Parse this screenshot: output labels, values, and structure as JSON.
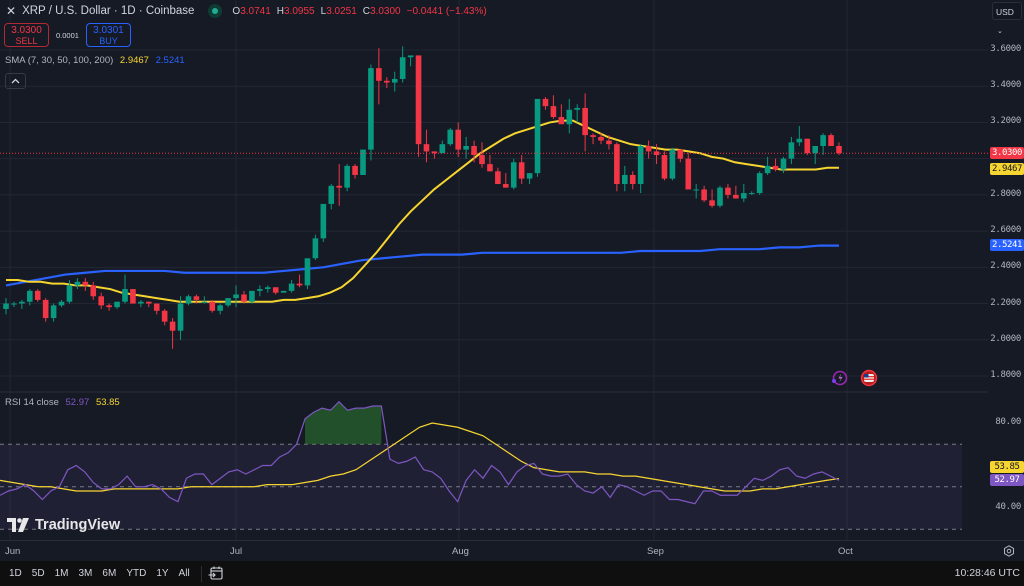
{
  "header": {
    "close_icon": "✕",
    "title": "XRP / U.S. Dollar · 1D · Coinbase",
    "ohlc": [
      {
        "label": "O",
        "value": "3.0741"
      },
      {
        "label": "H",
        "value": "3.0955"
      },
      {
        "label": "L",
        "value": "3.0251"
      },
      {
        "label": "C",
        "value": "3.0300"
      },
      {
        "label": "",
        "value": "−0.0441 (−1.43%)"
      }
    ]
  },
  "trade": {
    "sell_price": "3.0300",
    "sell_label": "SELL",
    "spread": "0.0001",
    "buy_price": "3.0301",
    "buy_label": "BUY"
  },
  "sma_legend": {
    "label": "SMA (7, 30, 50, 100, 200)",
    "value_yellow": "2.9467",
    "value_blue": "2.5241"
  },
  "collapse_icon": "^",
  "rsi_legend": {
    "label": "RSI 14 close",
    "value_rsi": "52.97",
    "value_ma": "53.85"
  },
  "currency": {
    "label": "USD",
    "chevron": "⌄"
  },
  "price_axis": {
    "ticks": [
      "3.6000",
      "3.4000",
      "3.2000",
      "2.8000",
      "2.6000",
      "2.4000",
      "2.2000",
      "2.0000",
      "1.8000"
    ],
    "tags": [
      {
        "value": "3.0300",
        "bg": "#f23645",
        "fg": "#ffffff"
      },
      {
        "value": "2.9467",
        "bg": "#f7d530",
        "fg": "#131722"
      },
      {
        "value": "2.5241",
        "bg": "#2962ff",
        "fg": "#ffffff"
      }
    ]
  },
  "rsi_axis": {
    "ticks": [
      "80.00",
      "40.00"
    ],
    "tags": [
      {
        "value": "53.85",
        "bg": "#f7d530",
        "fg": "#131722"
      },
      {
        "value": "52.97",
        "bg": "#7e57c2",
        "fg": "#ffffff"
      }
    ]
  },
  "time_axis": {
    "labels": [
      "Jun",
      "Jul",
      "Aug",
      "Sep",
      "Oct"
    ]
  },
  "bottom_bar": {
    "ranges": [
      "1D",
      "5D",
      "1M",
      "3M",
      "6M",
      "YTD",
      "1Y",
      "All"
    ],
    "clock": "10:28:46 UTC"
  },
  "logo": {
    "text": "TradingView"
  },
  "colors": {
    "up": "#089981",
    "down": "#f23645",
    "sma_fast": "#f7d530",
    "sma_slow": "#2962ff",
    "rsi": "#7e57c2",
    "rsi_ma": "#f7d530",
    "bg": "#161a25",
    "grid": "#232733"
  },
  "chart_data": [
    {
      "type": "candlestick",
      "title": "XRP / U.S. Dollar · 1D · Coinbase",
      "ylabel": "USD",
      "ylim": [
        1.75,
        3.7
      ],
      "x_ticks": [
        "Jun",
        "Jul",
        "Aug",
        "Sep",
        "Oct"
      ],
      "y_ticks": [
        1.8,
        2.0,
        2.2,
        2.4,
        2.6,
        2.8,
        3.2,
        3.4,
        3.6
      ],
      "last_price": 3.03,
      "candles": [
        [
          2.17,
          2.23,
          2.14,
          2.2
        ],
        [
          2.2,
          2.21,
          2.18,
          2.2
        ],
        [
          2.2,
          2.22,
          2.17,
          2.21
        ],
        [
          2.21,
          2.28,
          2.19,
          2.27
        ],
        [
          2.27,
          2.28,
          2.21,
          2.22
        ],
        [
          2.22,
          2.23,
          2.1,
          2.12
        ],
        [
          2.12,
          2.2,
          2.1,
          2.19
        ],
        [
          2.19,
          2.22,
          2.18,
          2.21
        ],
        [
          2.21,
          2.33,
          2.2,
          2.3
        ],
        [
          2.3,
          2.34,
          2.28,
          2.32
        ],
        [
          2.32,
          2.34,
          2.27,
          2.3
        ],
        [
          2.3,
          2.32,
          2.22,
          2.24
        ],
        [
          2.24,
          2.26,
          2.17,
          2.19
        ],
        [
          2.19,
          2.2,
          2.16,
          2.18
        ],
        [
          2.18,
          2.21,
          2.17,
          2.21
        ],
        [
          2.21,
          2.36,
          2.2,
          2.28
        ],
        [
          2.28,
          2.28,
          2.2,
          2.2
        ],
        [
          2.2,
          2.22,
          2.18,
          2.21
        ],
        [
          2.21,
          2.21,
          2.18,
          2.2
        ],
        [
          2.2,
          2.2,
          2.14,
          2.16
        ],
        [
          2.16,
          2.17,
          2.08,
          2.1
        ],
        [
          2.1,
          2.12,
          1.95,
          2.05
        ],
        [
          2.05,
          2.24,
          2.0,
          2.2
        ],
        [
          2.2,
          2.25,
          2.19,
          2.24
        ],
        [
          2.24,
          2.25,
          2.2,
          2.22
        ],
        [
          2.21,
          2.24,
          2.2,
          2.21
        ],
        [
          2.21,
          2.22,
          2.15,
          2.16
        ],
        [
          2.16,
          2.2,
          2.14,
          2.19
        ],
        [
          2.19,
          2.23,
          2.18,
          2.23
        ],
        [
          2.23,
          2.3,
          2.18,
          2.25
        ],
        [
          2.25,
          2.27,
          2.2,
          2.21
        ],
        [
          2.21,
          2.26,
          2.2,
          2.27
        ],
        [
          2.27,
          2.3,
          2.24,
          2.28
        ],
        [
          2.28,
          2.3,
          2.26,
          2.29
        ],
        [
          2.29,
          2.29,
          2.25,
          2.26
        ],
        [
          2.26,
          2.27,
          2.26,
          2.27
        ],
        [
          2.27,
          2.33,
          2.26,
          2.31
        ],
        [
          2.31,
          2.36,
          2.29,
          2.3
        ],
        [
          2.3,
          2.4,
          2.28,
          2.45
        ],
        [
          2.45,
          2.58,
          2.44,
          2.56
        ],
        [
          2.56,
          2.7,
          2.54,
          2.75
        ],
        [
          2.75,
          2.86,
          2.72,
          2.85
        ],
        [
          2.85,
          2.97,
          2.74,
          2.84
        ],
        [
          2.84,
          2.97,
          2.82,
          2.96
        ],
        [
          2.96,
          2.97,
          2.89,
          2.91
        ],
        [
          2.91,
          3.04,
          2.91,
          3.05
        ],
        [
          3.05,
          3.52,
          2.99,
          3.5
        ],
        [
          3.5,
          3.61,
          3.3,
          3.43
        ],
        [
          3.43,
          3.45,
          3.39,
          3.42
        ],
        [
          3.42,
          3.48,
          3.37,
          3.44
        ],
        [
          3.44,
          3.62,
          3.42,
          3.56
        ],
        [
          3.56,
          3.57,
          3.51,
          3.57
        ],
        [
          3.57,
          3.57,
          3.01,
          3.08
        ],
        [
          3.08,
          3.16,
          2.98,
          3.04
        ],
        [
          3.04,
          3.04,
          3.0,
          3.03
        ],
        [
          3.03,
          3.1,
          3.06,
          3.08
        ],
        [
          3.08,
          3.17,
          3.07,
          3.16
        ],
        [
          3.16,
          3.2,
          3.01,
          3.05
        ],
        [
          3.05,
          3.12,
          3.0,
          3.07
        ],
        [
          3.07,
          3.1,
          2.98,
          3.02
        ],
        [
          3.02,
          3.09,
          2.95,
          2.97
        ],
        [
          2.97,
          3.02,
          2.93,
          2.93
        ],
        [
          2.93,
          2.95,
          2.86,
          2.86
        ],
        [
          2.86,
          2.92,
          2.84,
          2.84
        ],
        [
          2.84,
          3.0,
          2.83,
          2.98
        ],
        [
          2.98,
          3.02,
          2.86,
          2.89
        ],
        [
          2.89,
          2.92,
          2.86,
          2.92
        ],
        [
          2.92,
          3.13,
          2.9,
          3.33
        ],
        [
          3.33,
          3.34,
          3.27,
          3.29
        ],
        [
          3.29,
          3.35,
          3.22,
          3.23
        ],
        [
          3.23,
          3.3,
          3.2,
          3.19
        ],
        [
          3.19,
          3.33,
          3.14,
          3.27
        ],
        [
          3.27,
          3.3,
          3.2,
          3.28
        ],
        [
          3.28,
          3.36,
          3.04,
          3.13
        ],
        [
          3.13,
          3.14,
          3.08,
          3.12
        ],
        [
          3.12,
          3.14,
          3.08,
          3.1
        ],
        [
          3.1,
          3.13,
          3.05,
          3.08
        ],
        [
          3.08,
          3.09,
          2.82,
          2.86
        ],
        [
          2.86,
          2.96,
          2.82,
          2.91
        ],
        [
          2.91,
          2.93,
          2.83,
          2.86
        ],
        [
          2.86,
          3.08,
          2.81,
          3.07
        ],
        [
          3.07,
          3.1,
          3.0,
          3.04
        ],
        [
          3.04,
          3.08,
          2.97,
          3.02
        ],
        [
          3.02,
          3.04,
          2.88,
          2.89
        ],
        [
          2.89,
          3.06,
          2.88,
          3.05
        ],
        [
          3.05,
          3.05,
          2.98,
          3.0
        ],
        [
          3.0,
          3.03,
          2.84,
          2.83
        ],
        [
          2.83,
          2.86,
          2.78,
          2.83
        ],
        [
          2.83,
          2.85,
          2.76,
          2.77
        ],
        [
          2.77,
          2.83,
          2.73,
          2.74
        ],
        [
          2.74,
          2.85,
          2.73,
          2.84
        ],
        [
          2.84,
          2.86,
          2.78,
          2.8
        ],
        [
          2.8,
          2.85,
          2.78,
          2.78
        ],
        [
          2.78,
          2.86,
          2.76,
          2.81
        ],
        [
          2.81,
          2.82,
          2.8,
          2.81
        ],
        [
          2.81,
          2.93,
          2.8,
          2.92
        ],
        [
          2.92,
          3.01,
          2.91,
          2.96
        ],
        [
          2.96,
          3.0,
          2.93,
          2.94
        ],
        [
          2.94,
          3.01,
          2.92,
          3.0
        ],
        [
          3.0,
          3.12,
          2.97,
          3.09
        ],
        [
          3.09,
          3.18,
          3.07,
          3.11
        ],
        [
          3.11,
          3.11,
          3.02,
          3.03
        ],
        [
          3.03,
          3.07,
          2.97,
          3.07
        ],
        [
          3.07,
          3.14,
          3.02,
          3.13
        ],
        [
          3.13,
          3.14,
          3.07,
          3.07
        ],
        [
          3.07,
          3.09,
          3.02,
          3.03
        ]
      ],
      "series": [
        {
          "name": "SMA fast (yellow)",
          "color": "#f7d530",
          "values": [
            2.33,
            2.33,
            2.32,
            2.32,
            2.31,
            2.31,
            2.3,
            2.3,
            2.29,
            2.28,
            2.26,
            2.25,
            2.24,
            2.23,
            2.22,
            2.21,
            2.21,
            2.21,
            2.21,
            2.21,
            2.21,
            2.21,
            2.21,
            2.21,
            2.22,
            2.22,
            2.23,
            2.24,
            2.26,
            2.29,
            2.34,
            2.41,
            2.48,
            2.56,
            2.64,
            2.71,
            2.77,
            2.83,
            2.88,
            2.93,
            2.98,
            3.03,
            3.07,
            3.11,
            3.14,
            3.16,
            3.18,
            3.2,
            3.21,
            3.21,
            3.18,
            3.15,
            3.12,
            3.1,
            3.08,
            3.07,
            3.06,
            3.05,
            3.05,
            3.04,
            3.03,
            3.01,
            3.0,
            2.98,
            2.97,
            2.96,
            2.95,
            2.94,
            2.94,
            2.94,
            2.94,
            2.95,
            2.95
          ]
        },
        {
          "name": "SMA slow (blue)",
          "color": "#2962ff",
          "values": [
            2.3,
            2.32,
            2.34,
            2.36,
            2.37,
            2.38,
            2.38,
            2.38,
            2.38,
            2.37,
            2.37,
            2.37,
            2.37,
            2.37,
            2.38,
            2.39,
            2.4,
            2.42,
            2.44,
            2.45,
            2.46,
            2.47,
            2.47,
            2.47,
            2.48,
            2.48,
            2.48,
            2.48,
            2.48,
            2.48,
            2.48,
            2.48,
            2.49,
            2.49,
            2.49,
            2.49,
            2.5,
            2.5,
            2.5,
            2.51,
            2.51,
            2.52,
            2.52
          ]
        }
      ]
    },
    {
      "type": "line",
      "title": "RSI 14 close",
      "ylim": [
        20,
        100
      ],
      "y_ticks": [
        40,
        80
      ],
      "bands": {
        "upper": 70,
        "middle": 50,
        "lower": 30
      },
      "series": [
        {
          "name": "RSI",
          "color": "#7e57c2",
          "values": [
            46,
            48,
            49,
            51,
            48,
            44,
            48,
            50,
            58,
            60,
            57,
            52,
            49,
            49,
            51,
            55,
            50,
            50,
            51,
            49,
            45,
            43,
            54,
            56,
            56,
            51,
            54,
            57,
            58,
            56,
            58,
            60,
            60,
            64,
            66,
            70,
            82,
            85,
            87,
            86,
            90,
            86,
            87,
            87,
            88,
            88,
            63,
            61,
            62,
            64,
            58,
            57,
            54,
            48,
            43,
            53,
            58,
            54,
            60,
            57,
            51,
            57,
            60,
            61,
            56,
            55,
            55,
            56,
            51,
            48,
            47,
            50,
            45,
            51,
            50,
            48,
            46,
            48,
            48,
            44,
            44,
            43,
            42,
            48,
            48,
            46,
            46,
            46,
            50,
            54,
            53,
            55,
            58,
            59,
            55,
            54,
            56,
            57,
            55,
            53
          ]
        },
        {
          "name": "RSI MA",
          "color": "#f7d530",
          "values": [
            53,
            52,
            51,
            50,
            50,
            49,
            48,
            48,
            48,
            49,
            49,
            49,
            49,
            49,
            49,
            50,
            50,
            50,
            50,
            50,
            50,
            51,
            51,
            51,
            52,
            53,
            55,
            56,
            58,
            62,
            66,
            70,
            74,
            78,
            80,
            79,
            78,
            76,
            74,
            70,
            66,
            62,
            59,
            58,
            57,
            57,
            57,
            56,
            56,
            55,
            55,
            54,
            53,
            52,
            51,
            50,
            49,
            48,
            48,
            48,
            49,
            49,
            50,
            51,
            52,
            53,
            53.85
          ]
        }
      ]
    }
  ]
}
